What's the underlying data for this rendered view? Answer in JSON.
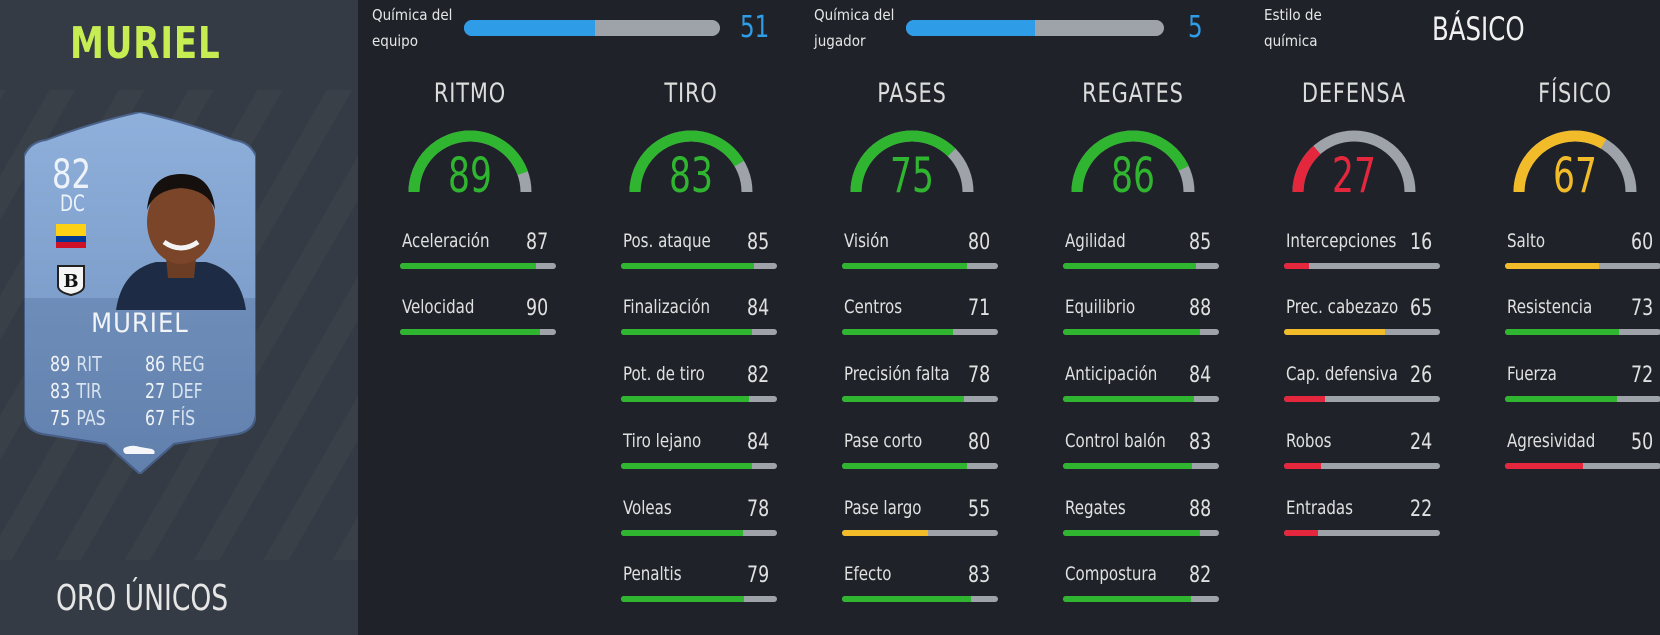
{
  "player": {
    "name": "MURIEL",
    "rarity": "ORO ÚNICOS",
    "card": {
      "rating": "82",
      "position": "DC",
      "name": "MURIEL",
      "stats": [
        {
          "value": "89",
          "label": "RIT"
        },
        {
          "value": "86",
          "label": "REG"
        },
        {
          "value": "83",
          "label": "TIR"
        },
        {
          "value": "27",
          "label": "DEF"
        },
        {
          "value": "75",
          "label": "PAS"
        },
        {
          "value": "67",
          "label": "FÍS"
        }
      ],
      "flag_icon": "colombia-flag-icon",
      "club_icon": "atalanta-crest-icon",
      "boot_icon": "boot-icon"
    }
  },
  "chemistry": {
    "team": {
      "label": "Química del equipo",
      "value": "51",
      "fraction": 0.51
    },
    "player": {
      "label": "Química del jugador",
      "value": "5",
      "fraction": 0.5
    },
    "style": {
      "label": "Estilo de química",
      "value": "BÁSICO"
    }
  },
  "colors": {
    "green": "#2fb52f",
    "red": "#e5273d",
    "yellow": "#f2bb2a",
    "blue": "#2e9ce6",
    "track": "#9da3a9"
  },
  "categories": [
    {
      "title": "RITMO",
      "value": "89",
      "level": "green",
      "stats": [
        {
          "label": "Aceleración",
          "value": "87",
          "level": "green"
        },
        {
          "label": "Velocidad",
          "value": "90",
          "level": "green"
        }
      ]
    },
    {
      "title": "TIRO",
      "value": "83",
      "level": "green",
      "stats": [
        {
          "label": "Pos. ataque",
          "value": "85",
          "level": "green"
        },
        {
          "label": "Finalización",
          "value": "84",
          "level": "green"
        },
        {
          "label": "Pot. de tiro",
          "value": "82",
          "level": "green"
        },
        {
          "label": "Tiro lejano",
          "value": "84",
          "level": "green"
        },
        {
          "label": "Voleas",
          "value": "78",
          "level": "green"
        },
        {
          "label": "Penaltis",
          "value": "79",
          "level": "green"
        }
      ]
    },
    {
      "title": "PASES",
      "value": "75",
      "level": "green",
      "stats": [
        {
          "label": "Visión",
          "value": "80",
          "level": "green"
        },
        {
          "label": "Centros",
          "value": "71",
          "level": "green"
        },
        {
          "label": "Precisión falta",
          "value": "78",
          "level": "green"
        },
        {
          "label": "Pase corto",
          "value": "80",
          "level": "green"
        },
        {
          "label": "Pase largo",
          "value": "55",
          "level": "yellow"
        },
        {
          "label": "Efecto",
          "value": "83",
          "level": "green"
        }
      ]
    },
    {
      "title": "REGATES",
      "value": "86",
      "level": "green",
      "stats": [
        {
          "label": "Agilidad",
          "value": "85",
          "level": "green"
        },
        {
          "label": "Equilibrio",
          "value": "88",
          "level": "green"
        },
        {
          "label": "Anticipación",
          "value": "84",
          "level": "green"
        },
        {
          "label": "Control balón",
          "value": "83",
          "level": "green"
        },
        {
          "label": "Regates",
          "value": "88",
          "level": "green"
        },
        {
          "label": "Compostura",
          "value": "82",
          "level": "green"
        }
      ]
    },
    {
      "title": "DEFENSA",
      "value": "27",
      "level": "red",
      "stats": [
        {
          "label": "Intercepciones",
          "value": "16",
          "level": "red"
        },
        {
          "label": "Prec. cabezazo",
          "value": "65",
          "level": "yellow"
        },
        {
          "label": "Cap. defensiva",
          "value": "26",
          "level": "red"
        },
        {
          "label": "Robos",
          "value": "24",
          "level": "red"
        },
        {
          "label": "Entradas",
          "value": "22",
          "level": "red"
        }
      ]
    },
    {
      "title": "FÍSICO",
      "value": "67",
      "level": "yellow",
      "stats": [
        {
          "label": "Salto",
          "value": "60",
          "level": "yellow"
        },
        {
          "label": "Resistencia",
          "value": "73",
          "level": "green"
        },
        {
          "label": "Fuerza",
          "value": "72",
          "level": "green"
        },
        {
          "label": "Agresividad",
          "value": "50",
          "level": "red"
        }
      ]
    }
  ]
}
